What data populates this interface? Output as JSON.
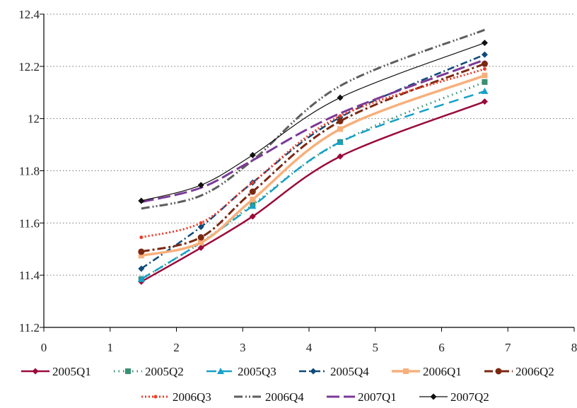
{
  "chart_data": {
    "type": "line",
    "title": "",
    "xlabel": "",
    "ylabel": "",
    "xlim": [
      0,
      8
    ],
    "ylim": [
      11.2,
      12.4
    ],
    "xticks": [
      0,
      1,
      2,
      3,
      4,
      5,
      6,
      7,
      8
    ],
    "yticks": [
      11.2,
      11.4,
      11.6,
      11.8,
      12,
      12.2,
      12.4
    ],
    "xtick_labels": [
      "0",
      "1",
      "2",
      "3",
      "4",
      "5",
      "6",
      "7",
      "8"
    ],
    "ytick_labels": [
      "11.2",
      "11.4",
      "11.6",
      "11.8",
      "12",
      "12.2",
      "12.4"
    ],
    "grid": "horizontal dotted",
    "legend_position": "bottom",
    "series": [
      {
        "name": "2005Q1",
        "color": "#9b0a3a",
        "dash": "",
        "width": 2.5,
        "marker": "diamond",
        "x": [
          1.47,
          2.37,
          3.15,
          4.47,
          6.65
        ],
        "y": [
          11.375,
          11.505,
          11.625,
          11.855,
          12.065
        ]
      },
      {
        "name": "2005Q2",
        "color": "#3a8f72",
        "dash": "1.5 5",
        "width": 3,
        "marker": "square",
        "x": [
          1.47,
          2.37,
          3.15,
          4.47,
          6.65
        ],
        "y": [
          11.385,
          11.525,
          11.67,
          11.91,
          12.14
        ]
      },
      {
        "name": "2005Q3",
        "color": "#16a1c8",
        "dash": "14 8",
        "width": 2.5,
        "marker": "triangle",
        "x": [
          1.47,
          2.37,
          3.15,
          4.47,
          6.65
        ],
        "y": [
          11.385,
          11.525,
          11.665,
          11.91,
          12.105
        ]
      },
      {
        "name": "2005Q4",
        "color": "#0d4a7a",
        "dash": "10 4 2 4",
        "width": 2.5,
        "marker": "diamond",
        "x": [
          1.47,
          2.37,
          3.15,
          4.47,
          6.65
        ],
        "y": [
          11.425,
          11.585,
          11.755,
          12.005,
          12.245
        ]
      },
      {
        "name": "2006Q1",
        "color": "#f7b07c",
        "dash": "",
        "width": 3.5,
        "marker": "square",
        "x": [
          1.47,
          2.37,
          3.15,
          4.47,
          6.65
        ],
        "y": [
          11.475,
          11.525,
          11.69,
          11.96,
          12.165
        ]
      },
      {
        "name": "2006Q2",
        "color": "#7b2812",
        "dash": "12 4 3 4",
        "width": 3,
        "marker": "circle",
        "x": [
          1.47,
          2.37,
          3.15,
          4.47,
          6.65
        ],
        "y": [
          11.49,
          11.545,
          11.72,
          11.99,
          12.21
        ]
      },
      {
        "name": "2006Q3",
        "color": "#ee3b28",
        "dash": "2 3",
        "width": 3,
        "marker": "dot",
        "x": [
          1.47,
          2.37,
          3.15,
          4.47,
          6.65
        ],
        "y": [
          11.545,
          11.6,
          11.755,
          12.01,
          12.19
        ]
      },
      {
        "name": "2006Q4",
        "color": "#5e5e5e",
        "dash": "12 4 2 3 2 3",
        "width": 3,
        "marker": "none",
        "x": [
          1.47,
          2.37,
          3.15,
          4.47,
          6.65
        ],
        "y": [
          11.655,
          11.705,
          11.84,
          12.125,
          12.34
        ]
      },
      {
        "name": "2007Q1",
        "color": "#7b3a97",
        "dash": "18 6",
        "width": 3,
        "marker": "none",
        "x": [
          1.47,
          2.37,
          3.15,
          4.47,
          6.65
        ],
        "y": [
          11.68,
          11.735,
          11.84,
          12.02,
          12.225
        ]
      },
      {
        "name": "2007Q2",
        "color": "#111111",
        "dash": "",
        "width": 1.2,
        "marker": "diamond",
        "x": [
          1.47,
          2.37,
          3.15,
          4.47,
          6.65
        ],
        "y": [
          11.685,
          11.745,
          11.86,
          12.08,
          12.29
        ]
      }
    ]
  }
}
